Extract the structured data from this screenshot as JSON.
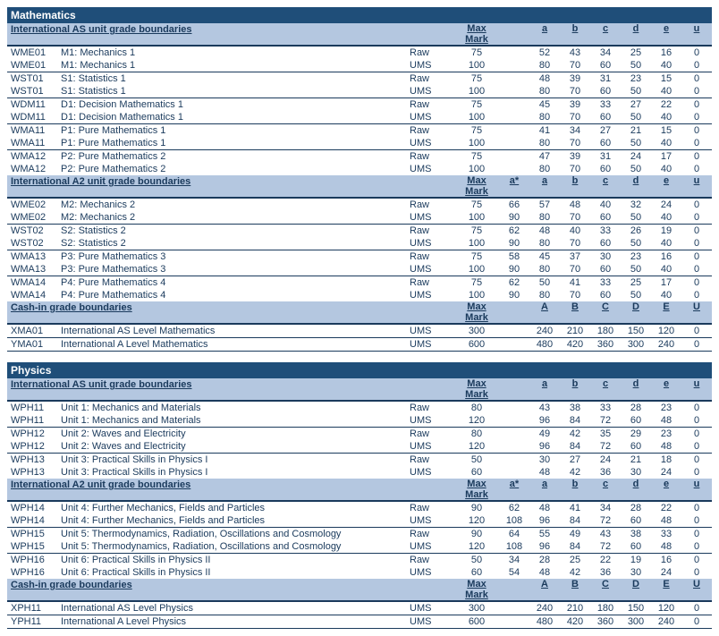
{
  "colors": {
    "subject_bg": "#1f4e79",
    "subject_fg": "#ffffff",
    "section_bg": "#b4c7e0",
    "text": "#1a3a5c",
    "border": "#1a3a5c"
  },
  "labels": {
    "maxmark": "Max Mark",
    "raw": "Raw",
    "ums": "UMS"
  },
  "subjects": [
    {
      "name": "Mathematics",
      "sections": [
        {
          "title": "International AS unit grade boundaries",
          "grade_headers": [
            "",
            "a",
            "b",
            "c",
            "d",
            "e",
            "u"
          ],
          "units": [
            {
              "code": "WME01",
              "name": "M1: Mechanics 1",
              "rows": [
                {
                  "type": "Raw",
                  "max": "75",
                  "grades": [
                    "",
                    "52",
                    "43",
                    "34",
                    "25",
                    "16",
                    "0"
                  ]
                },
                {
                  "type": "UMS",
                  "max": "100",
                  "grades": [
                    "",
                    "80",
                    "70",
                    "60",
                    "50",
                    "40",
                    "0"
                  ]
                }
              ]
            },
            {
              "code": "WST01",
              "name": "S1: Statistics 1",
              "rows": [
                {
                  "type": "Raw",
                  "max": "75",
                  "grades": [
                    "",
                    "48",
                    "39",
                    "31",
                    "23",
                    "15",
                    "0"
                  ]
                },
                {
                  "type": "UMS",
                  "max": "100",
                  "grades": [
                    "",
                    "80",
                    "70",
                    "60",
                    "50",
                    "40",
                    "0"
                  ]
                }
              ]
            },
            {
              "code": "WDM11",
              "name": "D1: Decision Mathematics 1",
              "rows": [
                {
                  "type": "Raw",
                  "max": "75",
                  "grades": [
                    "",
                    "45",
                    "39",
                    "33",
                    "27",
                    "22",
                    "0"
                  ]
                },
                {
                  "type": "UMS",
                  "max": "100",
                  "grades": [
                    "",
                    "80",
                    "70",
                    "60",
                    "50",
                    "40",
                    "0"
                  ]
                }
              ]
            },
            {
              "code": "WMA11",
              "name": "P1: Pure Mathematics 1",
              "rows": [
                {
                  "type": "Raw",
                  "max": "75",
                  "grades": [
                    "",
                    "41",
                    "34",
                    "27",
                    "21",
                    "15",
                    "0"
                  ]
                },
                {
                  "type": "UMS",
                  "max": "100",
                  "grades": [
                    "",
                    "80",
                    "70",
                    "60",
                    "50",
                    "40",
                    "0"
                  ]
                }
              ]
            },
            {
              "code": "WMA12",
              "name": "P2: Pure Mathematics 2",
              "rows": [
                {
                  "type": "Raw",
                  "max": "75",
                  "grades": [
                    "",
                    "47",
                    "39",
                    "31",
                    "24",
                    "17",
                    "0"
                  ]
                },
                {
                  "type": "UMS",
                  "max": "100",
                  "grades": [
                    "",
                    "80",
                    "70",
                    "60",
                    "50",
                    "40",
                    "0"
                  ]
                }
              ]
            }
          ]
        },
        {
          "title": "International A2 unit grade boundaries",
          "grade_headers": [
            "a*",
            "a",
            "b",
            "c",
            "d",
            "e",
            "u"
          ],
          "units": [
            {
              "code": "WME02",
              "name": "M2: Mechanics 2",
              "rows": [
                {
                  "type": "Raw",
                  "max": "75",
                  "grades": [
                    "66",
                    "57",
                    "48",
                    "40",
                    "32",
                    "24",
                    "0"
                  ]
                },
                {
                  "type": "UMS",
                  "max": "100",
                  "grades": [
                    "90",
                    "80",
                    "70",
                    "60",
                    "50",
                    "40",
                    "0"
                  ]
                }
              ]
            },
            {
              "code": "WST02",
              "name": "S2: Statistics 2",
              "rows": [
                {
                  "type": "Raw",
                  "max": "75",
                  "grades": [
                    "62",
                    "48",
                    "40",
                    "33",
                    "26",
                    "19",
                    "0"
                  ]
                },
                {
                  "type": "UMS",
                  "max": "100",
                  "grades": [
                    "90",
                    "80",
                    "70",
                    "60",
                    "50",
                    "40",
                    "0"
                  ]
                }
              ]
            },
            {
              "code": "WMA13",
              "name": "P3: Pure Mathematics 3",
              "rows": [
                {
                  "type": "Raw",
                  "max": "75",
                  "grades": [
                    "58",
                    "45",
                    "37",
                    "30",
                    "23",
                    "16",
                    "0"
                  ]
                },
                {
                  "type": "UMS",
                  "max": "100",
                  "grades": [
                    "90",
                    "80",
                    "70",
                    "60",
                    "50",
                    "40",
                    "0"
                  ]
                }
              ]
            },
            {
              "code": "WMA14",
              "name": "P4: Pure Mathematics 4",
              "rows": [
                {
                  "type": "Raw",
                  "max": "75",
                  "grades": [
                    "62",
                    "50",
                    "41",
                    "33",
                    "25",
                    "17",
                    "0"
                  ]
                },
                {
                  "type": "UMS",
                  "max": "100",
                  "grades": [
                    "90",
                    "80",
                    "70",
                    "60",
                    "50",
                    "40",
                    "0"
                  ]
                }
              ]
            }
          ]
        },
        {
          "title": "Cash-in grade boundaries",
          "grade_headers": [
            "",
            "A",
            "B",
            "C",
            "D",
            "E",
            "U"
          ],
          "cashin": [
            {
              "code": "XMA01",
              "name": "International AS Level Mathematics",
              "type": "UMS",
              "max": "300",
              "grades": [
                "",
                "240",
                "210",
                "180",
                "150",
                "120",
                "0"
              ]
            },
            {
              "code": "YMA01",
              "name": "International A Level Mathematics",
              "type": "UMS",
              "max": "600",
              "grades": [
                "",
                "480",
                "420",
                "360",
                "300",
                "240",
                "0"
              ]
            }
          ]
        }
      ]
    },
    {
      "name": "Physics",
      "sections": [
        {
          "title": "International AS unit grade boundaries",
          "grade_headers": [
            "",
            "a",
            "b",
            "c",
            "d",
            "e",
            "u"
          ],
          "units": [
            {
              "code": "WPH11",
              "name": "Unit 1: Mechanics and Materials",
              "rows": [
                {
                  "type": "Raw",
                  "max": "80",
                  "grades": [
                    "",
                    "43",
                    "38",
                    "33",
                    "28",
                    "23",
                    "0"
                  ]
                },
                {
                  "type": "UMS",
                  "max": "120",
                  "grades": [
                    "",
                    "96",
                    "84",
                    "72",
                    "60",
                    "48",
                    "0"
                  ]
                }
              ]
            },
            {
              "code": "WPH12",
              "name": "Unit 2: Waves and Electricity",
              "rows": [
                {
                  "type": "Raw",
                  "max": "80",
                  "grades": [
                    "",
                    "49",
                    "42",
                    "35",
                    "29",
                    "23",
                    "0"
                  ]
                },
                {
                  "type": "UMS",
                  "max": "120",
                  "grades": [
                    "",
                    "96",
                    "84",
                    "72",
                    "60",
                    "48",
                    "0"
                  ]
                }
              ]
            },
            {
              "code": "WPH13",
              "name": "Unit 3: Practical Skills in Physics I",
              "rows": [
                {
                  "type": "Raw",
                  "max": "50",
                  "grades": [
                    "",
                    "30",
                    "27",
                    "24",
                    "21",
                    "18",
                    "0"
                  ]
                },
                {
                  "type": "UMS",
                  "max": "60",
                  "grades": [
                    "",
                    "48",
                    "42",
                    "36",
                    "30",
                    "24",
                    "0"
                  ]
                }
              ]
            }
          ]
        },
        {
          "title": "International A2 unit grade boundaries",
          "grade_headers": [
            "a*",
            "a",
            "b",
            "c",
            "d",
            "e",
            "u"
          ],
          "units": [
            {
              "code": "WPH14",
              "name": "Unit 4: Further Mechanics, Fields and Particles",
              "rows": [
                {
                  "type": "Raw",
                  "max": "90",
                  "grades": [
                    "62",
                    "48",
                    "41",
                    "34",
                    "28",
                    "22",
                    "0"
                  ]
                },
                {
                  "type": "UMS",
                  "max": "120",
                  "grades": [
                    "108",
                    "96",
                    "84",
                    "72",
                    "60",
                    "48",
                    "0"
                  ]
                }
              ]
            },
            {
              "code": "WPH15",
              "name": "Unit 5: Thermodynamics, Radiation, Oscillations and Cosmology",
              "rows": [
                {
                  "type": "Raw",
                  "max": "90",
                  "grades": [
                    "64",
                    "55",
                    "49",
                    "43",
                    "38",
                    "33",
                    "0"
                  ]
                },
                {
                  "type": "UMS",
                  "max": "120",
                  "grades": [
                    "108",
                    "96",
                    "84",
                    "72",
                    "60",
                    "48",
                    "0"
                  ]
                }
              ]
            },
            {
              "code": "WPH16",
              "name": "Unit 6: Practical Skills in Physics II",
              "rows": [
                {
                  "type": "Raw",
                  "max": "50",
                  "grades": [
                    "34",
                    "28",
                    "25",
                    "22",
                    "19",
                    "16",
                    "0"
                  ]
                },
                {
                  "type": "UMS",
                  "max": "60",
                  "grades": [
                    "54",
                    "48",
                    "42",
                    "36",
                    "30",
                    "24",
                    "0"
                  ]
                }
              ]
            }
          ]
        },
        {
          "title": "Cash-in grade boundaries",
          "grade_headers": [
            "",
            "A",
            "B",
            "C",
            "D",
            "E",
            "U"
          ],
          "cashin": [
            {
              "code": "XPH11",
              "name": "International AS Level Physics",
              "type": "UMS",
              "max": "300",
              "grades": [
                "",
                "240",
                "210",
                "180",
                "150",
                "120",
                "0"
              ]
            },
            {
              "code": "YPH11",
              "name": "International A Level Physics",
              "type": "UMS",
              "max": "600",
              "grades": [
                "",
                "480",
                "420",
                "360",
                "300",
                "240",
                "0"
              ]
            }
          ]
        }
      ]
    }
  ]
}
